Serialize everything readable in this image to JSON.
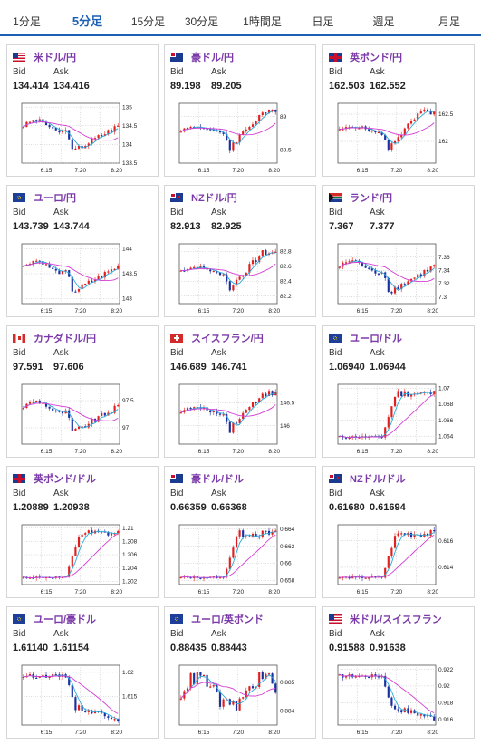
{
  "tabs": [
    {
      "label": "1分足",
      "active": false
    },
    {
      "label": "5分足",
      "active": true
    },
    {
      "label": "15分足",
      "active": false
    },
    {
      "label": "30分足",
      "active": false
    },
    {
      "label": "1時間足",
      "active": false
    },
    {
      "label": "日足",
      "active": false
    },
    {
      "label": "週足",
      "active": false
    },
    {
      "label": "月足",
      "active": false
    }
  ],
  "labels": {
    "bid": "Bid",
    "ask": "Ask"
  },
  "colors": {
    "up": "#e02020",
    "down": "#1a2fa0",
    "ma_short": "#29a9d8",
    "ma_long": "#d43cd4",
    "tab_accent": "#1d5fb4",
    "pair_text": "#7b3aa8"
  },
  "cards": [
    {
      "pair": "米ドル/円",
      "flag": "us-flag",
      "bid": "134.414",
      "ask": "134.416",
      "chart_data": {
        "type": "candlestick",
        "x_ticks": [
          "6:15",
          "7:20",
          "8:20"
        ],
        "y_ticks": [
          "135",
          "134.5",
          "134",
          "133.5"
        ],
        "ylim": [
          133.5,
          135.1
        ],
        "shape": "dip-recover"
      }
    },
    {
      "pair": "豪ドル/円",
      "flag": "au-flag",
      "bid": "89.198",
      "ask": "89.205",
      "chart_data": {
        "type": "candlestick",
        "x_ticks": [
          "6:15",
          "7:20",
          "8:20"
        ],
        "y_ticks": [
          "89",
          "88.5"
        ],
        "ylim": [
          88.3,
          89.2
        ],
        "shape": "dip-surge"
      }
    },
    {
      "pair": "英ポンド/円",
      "flag": "uk-flag",
      "bid": "162.503",
      "ask": "162.552",
      "chart_data": {
        "type": "candlestick",
        "x_ticks": [
          "6:15",
          "7:20",
          "8:20"
        ],
        "y_ticks": [
          "162.5",
          "162"
        ],
        "ylim": [
          161.6,
          162.7
        ],
        "shape": "dip-surge"
      }
    },
    {
      "pair": "ユーロ/円",
      "flag": "eu-flag",
      "bid": "143.739",
      "ask": "143.744",
      "chart_data": {
        "type": "candlestick",
        "x_ticks": [
          "6:15",
          "7:20",
          "8:20"
        ],
        "y_ticks": [
          "144",
          "143.5",
          "143"
        ],
        "ylim": [
          142.9,
          144.1
        ],
        "shape": "dip-recover"
      }
    },
    {
      "pair": "NZドル/円",
      "flag": "nz-flag",
      "bid": "82.913",
      "ask": "82.925",
      "chart_data": {
        "type": "candlestick",
        "x_ticks": [
          "6:15",
          "7:20",
          "8:20"
        ],
        "y_ticks": [
          "82.8",
          "82.6",
          "82.4",
          "82.2"
        ],
        "ylim": [
          82.1,
          82.9
        ],
        "shape": "dip-surge"
      }
    },
    {
      "pair": "ランド/円",
      "flag": "za-flag",
      "bid": "7.367",
      "ask": "7.377",
      "chart_data": {
        "type": "candlestick",
        "x_ticks": [
          "6:15",
          "7:20",
          "8:20"
        ],
        "y_ticks": [
          "7.36",
          "7.34",
          "7.32",
          "7.3"
        ],
        "ylim": [
          7.29,
          7.38
        ],
        "shape": "dip-recover"
      }
    },
    {
      "pair": "カナダドル/円",
      "flag": "ca-flag",
      "bid": "97.591",
      "ask": "97.606",
      "chart_data": {
        "type": "candlestick",
        "x_ticks": [
          "6:15",
          "7:20",
          "8:20"
        ],
        "y_ticks": [
          "97.5",
          "97"
        ],
        "ylim": [
          96.7,
          97.8
        ],
        "shape": "dip-recover"
      }
    },
    {
      "pair": "スイスフラン/円",
      "flag": "ch-flag",
      "bid": "146.689",
      "ask": "146.741",
      "chart_data": {
        "type": "candlestick",
        "x_ticks": [
          "6:15",
          "7:20",
          "8:20"
        ],
        "y_ticks": [
          "146.5",
          "146"
        ],
        "ylim": [
          145.6,
          146.9
        ],
        "shape": "dip-surge"
      }
    },
    {
      "pair": "ユーロ/ドル",
      "flag": "eu-us-flag",
      "bid": "1.06940",
      "ask": "1.06944",
      "chart_data": {
        "type": "candlestick",
        "x_ticks": [
          "6:15",
          "7:20",
          "8:20"
        ],
        "y_ticks": [
          "1.07",
          "1.068",
          "1.066",
          "1.064"
        ],
        "ylim": [
          1.063,
          1.0705
        ],
        "shape": "step-up"
      }
    },
    {
      "pair": "英ポンド/ドル",
      "flag": "uk-us-flag",
      "bid": "1.20889",
      "ask": "1.20938",
      "chart_data": {
        "type": "candlestick",
        "x_ticks": [
          "6:15",
          "7:20",
          "8:20"
        ],
        "y_ticks": [
          "1.21",
          "1.208",
          "1.206",
          "1.204",
          "1.202"
        ],
        "ylim": [
          1.2015,
          1.2105
        ],
        "shape": "step-up"
      }
    },
    {
      "pair": "豪ドル/ドル",
      "flag": "au-us-flag",
      "bid": "0.66359",
      "ask": "0.66368",
      "chart_data": {
        "type": "candlestick",
        "x_ticks": [
          "6:15",
          "7:20",
          "8:20"
        ],
        "y_ticks": [
          "0.664",
          "0.662",
          "0.66",
          "0.658"
        ],
        "ylim": [
          0.6575,
          0.6645
        ],
        "shape": "step-up"
      }
    },
    {
      "pair": "NZドル/ドル",
      "flag": "nz-us-flag",
      "bid": "0.61680",
      "ask": "0.61694",
      "chart_data": {
        "type": "candlestick",
        "x_ticks": [
          "6:15",
          "7:20",
          "8:20"
        ],
        "y_ticks": [
          "0.616",
          "0.614"
        ],
        "ylim": [
          0.6127,
          0.6172
        ],
        "shape": "step-up"
      }
    },
    {
      "pair": "ユーロ/豪ドル",
      "flag": "eu-au-flag",
      "bid": "1.61140",
      "ask": "1.61154",
      "chart_data": {
        "type": "candlestick",
        "x_ticks": [
          "6:15",
          "7:20",
          "8:20"
        ],
        "y_ticks": [
          "1.62",
          "1.615"
        ],
        "ylim": [
          1.609,
          1.6215
        ],
        "shape": "step-down"
      }
    },
    {
      "pair": "ユーロ/英ポンド",
      "flag": "eu-uk-flag",
      "bid": "0.88435",
      "ask": "0.88443",
      "chart_data": {
        "type": "candlestick",
        "x_ticks": [
          "6:15",
          "7:20",
          "8:20"
        ],
        "y_ticks": [
          "0.885",
          "0.884"
        ],
        "ylim": [
          0.8835,
          0.8856
        ],
        "shape": "choppy"
      }
    },
    {
      "pair": "米ドル/スイスフラン",
      "flag": "us-ch-flag",
      "bid": "0.91588",
      "ask": "0.91638",
      "chart_data": {
        "type": "candlestick",
        "x_ticks": [
          "6:15",
          "7:20",
          "8:20"
        ],
        "y_ticks": [
          "0.922",
          "0.92",
          "0.918",
          "0.916"
        ],
        "ylim": [
          0.9153,
          0.9225
        ],
        "shape": "step-down"
      }
    }
  ]
}
